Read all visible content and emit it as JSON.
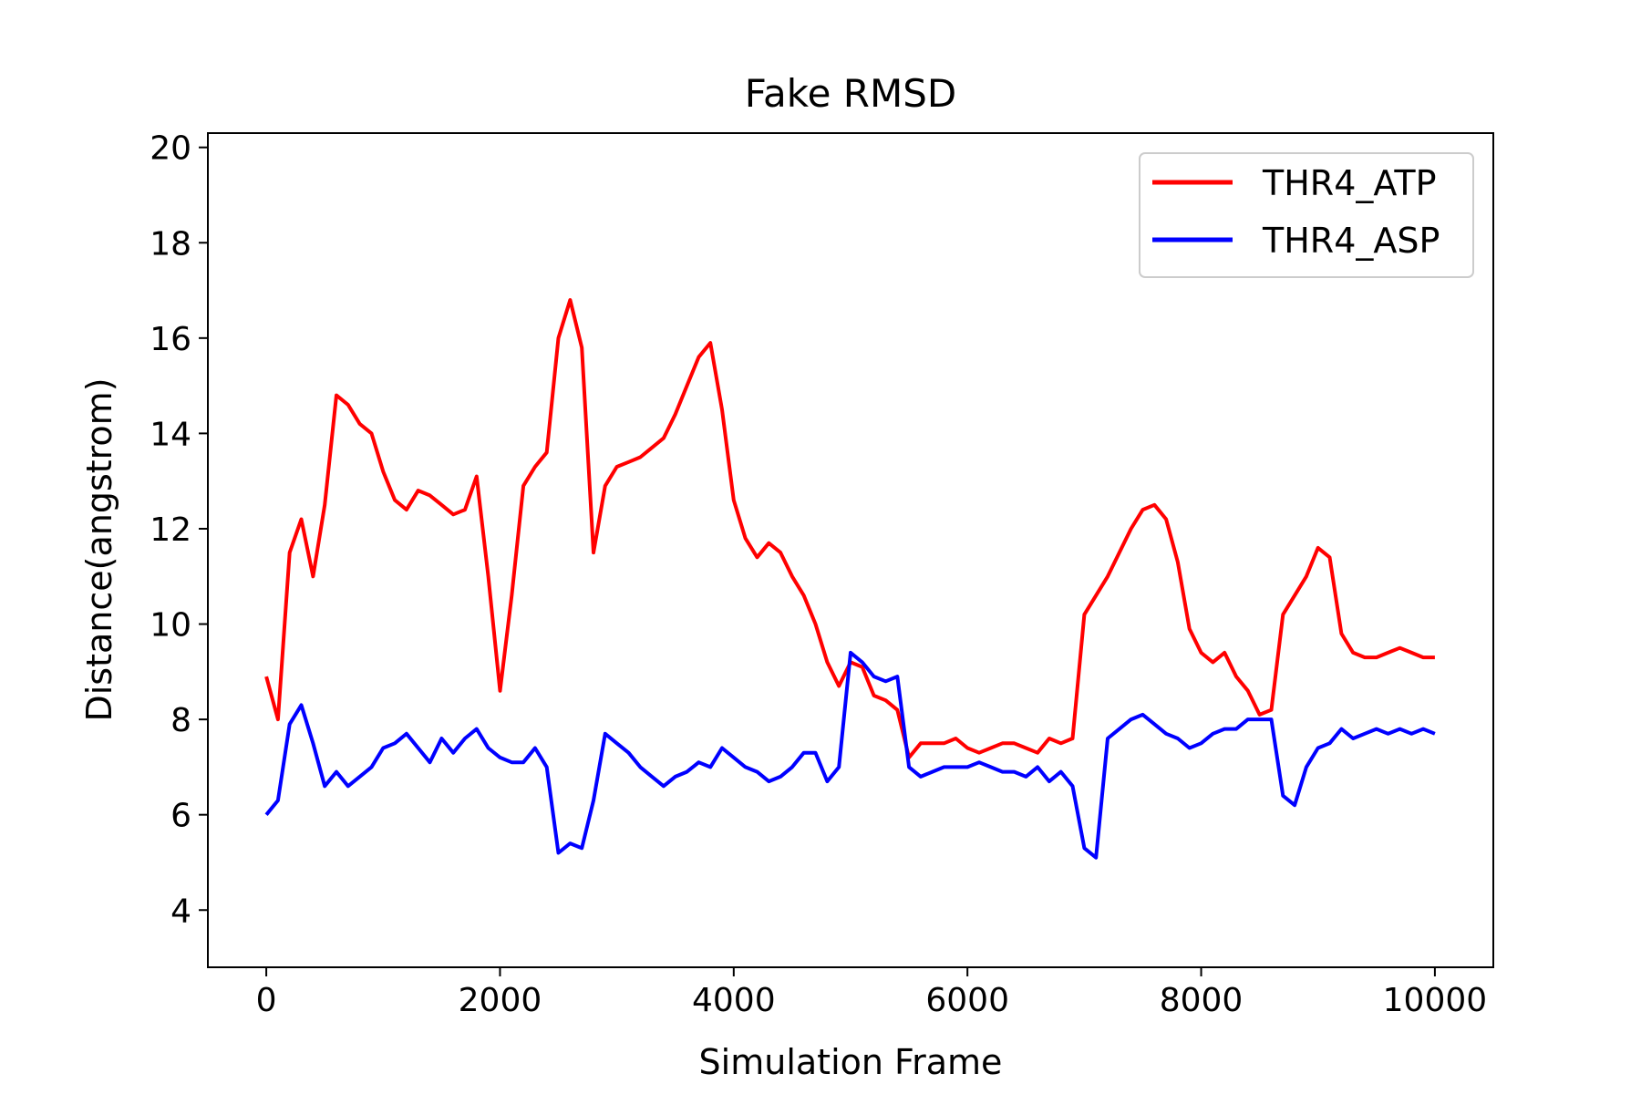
{
  "chart_data": {
    "type": "line",
    "title": "Fake RMSD",
    "xlabel": "Simulation Frame",
    "ylabel": "Distance(angstrom)",
    "xlim": [
      -500,
      10500
    ],
    "ylim": [
      2.8,
      20.3
    ],
    "xticks": [
      0,
      2000,
      4000,
      6000,
      8000,
      10000
    ],
    "yticks": [
      4,
      6,
      8,
      10,
      12,
      14,
      16,
      18,
      20
    ],
    "grid": false,
    "legend_position": "top-right",
    "x": [
      0,
      100,
      200,
      300,
      400,
      500,
      600,
      700,
      800,
      900,
      1000,
      1100,
      1200,
      1300,
      1400,
      1500,
      1600,
      1700,
      1800,
      1900,
      2000,
      2100,
      2200,
      2300,
      2400,
      2500,
      2600,
      2700,
      2800,
      2900,
      3000,
      3100,
      3200,
      3300,
      3400,
      3500,
      3600,
      3700,
      3800,
      3900,
      4000,
      4100,
      4200,
      4300,
      4400,
      4500,
      4600,
      4700,
      4800,
      4900,
      5000,
      5100,
      5200,
      5300,
      5400,
      5500,
      5600,
      5700,
      5800,
      5900,
      6000,
      6100,
      6200,
      6300,
      6400,
      6500,
      6600,
      6700,
      6800,
      6900,
      7000,
      7100,
      7200,
      7300,
      7400,
      7500,
      7600,
      7700,
      7800,
      7900,
      8000,
      8100,
      8200,
      8300,
      8400,
      8500,
      8600,
      8700,
      8800,
      8900,
      9000,
      9100,
      9200,
      9300,
      9400,
      9500,
      9600,
      9700,
      9800,
      9900,
      10000
    ],
    "series": [
      {
        "name": "THR4_ATP",
        "color": "#ff0000",
        "values": [
          8.9,
          8.0,
          11.5,
          12.2,
          11.0,
          12.5,
          14.8,
          14.6,
          14.2,
          14.0,
          13.2,
          12.6,
          12.4,
          12.8,
          12.7,
          12.5,
          12.3,
          12.4,
          13.1,
          11.0,
          8.6,
          10.6,
          12.9,
          13.3,
          13.6,
          16.0,
          16.8,
          15.8,
          11.5,
          12.9,
          13.3,
          13.4,
          13.5,
          13.7,
          13.9,
          14.4,
          15.0,
          15.6,
          15.9,
          14.5,
          12.6,
          11.8,
          11.4,
          11.7,
          11.5,
          11.0,
          10.6,
          10.0,
          9.2,
          8.7,
          9.2,
          9.1,
          8.5,
          8.4,
          8.2,
          7.2,
          7.5,
          7.5,
          7.5,
          7.6,
          7.4,
          7.3,
          7.4,
          7.5,
          7.5,
          7.4,
          7.3,
          7.6,
          7.5,
          7.6,
          10.2,
          10.6,
          11.0,
          11.5,
          12.0,
          12.4,
          12.5,
          12.2,
          11.3,
          9.9,
          9.4,
          9.2,
          9.4,
          8.9,
          8.6,
          8.1,
          8.2,
          10.2,
          10.6,
          11.0,
          11.6,
          11.4,
          9.8,
          9.4,
          9.3,
          9.3,
          9.4,
          9.5,
          9.4,
          9.3,
          9.3
        ]
      },
      {
        "name": "THR4_ASP",
        "color": "#0000ff",
        "values": [
          6.0,
          6.3,
          7.9,
          8.3,
          7.5,
          6.6,
          6.9,
          6.6,
          6.8,
          7.0,
          7.4,
          7.5,
          7.7,
          7.4,
          7.1,
          7.6,
          7.3,
          7.6,
          7.8,
          7.4,
          7.2,
          7.1,
          7.1,
          7.4,
          7.0,
          5.2,
          5.4,
          5.3,
          6.3,
          7.7,
          7.5,
          7.3,
          7.0,
          6.8,
          6.6,
          6.8,
          6.9,
          7.1,
          7.0,
          7.4,
          7.2,
          7.0,
          6.9,
          6.7,
          6.8,
          7.0,
          7.3,
          7.3,
          6.7,
          7.0,
          9.4,
          9.2,
          8.9,
          8.8,
          8.9,
          7.0,
          6.8,
          6.9,
          7.0,
          7.0,
          7.0,
          7.1,
          7.0,
          6.9,
          6.9,
          6.8,
          7.0,
          6.7,
          6.9,
          6.6,
          5.3,
          5.1,
          7.6,
          7.8,
          8.0,
          8.1,
          7.9,
          7.7,
          7.6,
          7.4,
          7.5,
          7.7,
          7.8,
          7.8,
          8.0,
          8.0,
          8.0,
          6.4,
          6.2,
          7.0,
          7.4,
          7.5,
          7.8,
          7.6,
          7.7,
          7.8,
          7.7,
          7.8,
          7.7,
          7.8,
          7.7
        ]
      }
    ]
  }
}
